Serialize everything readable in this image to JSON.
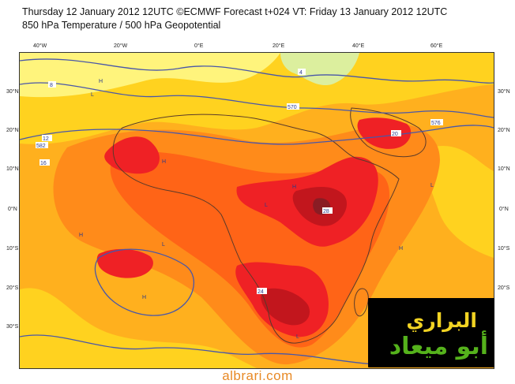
{
  "header": {
    "title_line1": "Thursday 12 January 2012 12UTC ©ECMWF Forecast t+024 VT: Friday 13 January 2012 12UTC",
    "title_line2": "850 hPa Temperature / 500 hPa Geopotential"
  },
  "map": {
    "lon_labels": [
      "40°W",
      "20°W",
      "0°E",
      "20°E",
      "40°E",
      "60°E"
    ],
    "lat_labels_left": [
      "30°N",
      "20°N",
      "10°N",
      "0°N",
      "10°S",
      "20°S",
      "30°S"
    ],
    "lat_labels_right": [
      "30°N",
      "20°N",
      "10°N",
      "0°N",
      "10°S",
      "20°S",
      "30°S"
    ],
    "temperature_labels": [
      "4",
      "8",
      "12",
      "16",
      "20",
      "24",
      "28"
    ],
    "geopotential_labels": [
      "570",
      "582",
      "576"
    ],
    "pressure_markers": [
      "H",
      "L"
    ],
    "colors": {
      "pale_yellow": "#fff47c",
      "yellow": "#ffd21f",
      "amber": "#ffb01e",
      "orange": "#ff8b1a",
      "dark_orange": "#ff6417",
      "red": "#ef2125",
      "deep_red": "#c2161d",
      "maroon": "#8a1c24",
      "contour_line": "#4957a8",
      "ocean_pale_green": "#dcef9e"
    }
  },
  "watermark": {
    "line1": "البراري",
    "line2": "أبو ميعاد"
  },
  "footer": {
    "site": "albrari.com"
  }
}
